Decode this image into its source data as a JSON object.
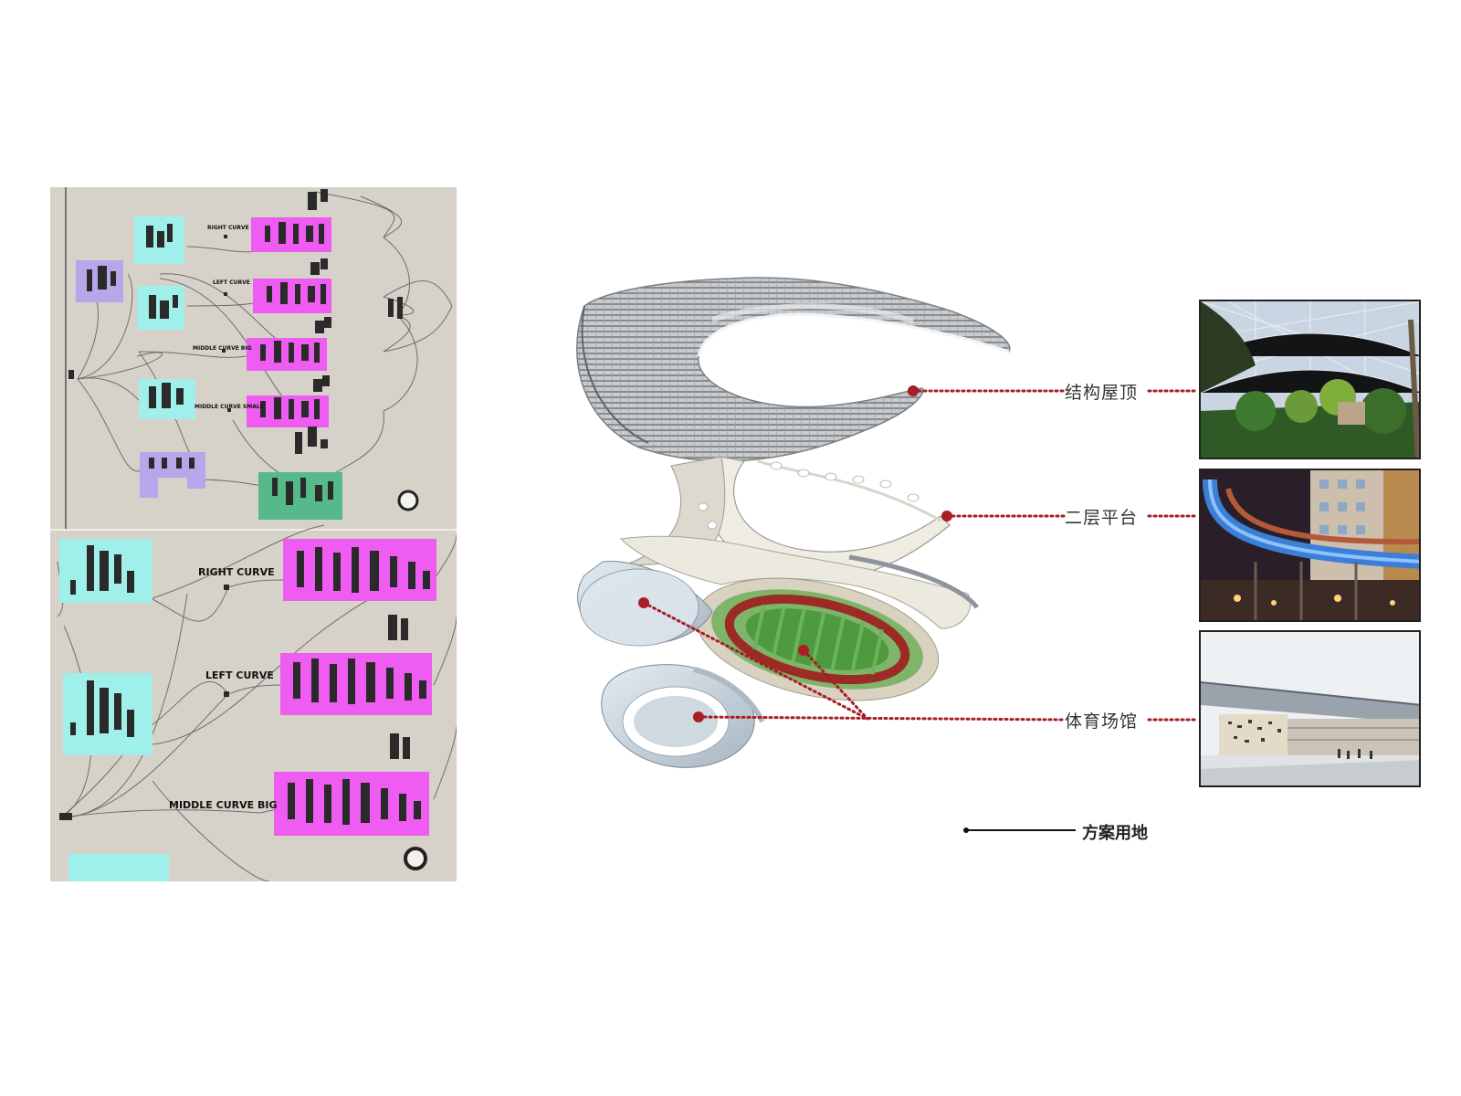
{
  "grasshopper": {
    "upper": {
      "labels": [
        "RIGHT CURVE",
        "LEFT CURVE",
        "MIDDLE CURVE BIG",
        "MIDDLE CURVE SMALL"
      ]
    },
    "lower": {
      "labels": [
        "RIGHT CURVE",
        "LEFT CURVE",
        "MIDDLE CURVE BIG"
      ]
    },
    "colors": {
      "canvas": "#d6d2c9",
      "group_cyan": "#9ff0ea",
      "group_magenta": "#ef5cf2",
      "group_purple": "#b7a6ea",
      "group_green": "#55b98a"
    }
  },
  "layers": [
    {
      "id": "roof",
      "label": "结构屋顶",
      "photo": "glass-dome-garden-photo"
    },
    {
      "id": "platform",
      "label": "二层平台",
      "photo": "elevated-walkway-night-photo"
    },
    {
      "id": "venue",
      "label": "体育场馆",
      "photo": "stadium-exterior-photo"
    }
  ],
  "legend": {
    "site_label": "方案用地"
  },
  "colors": {
    "leader_dot": "#a81d26",
    "roof_mesh": "#8e9194",
    "field_green": "#4e9a3e",
    "track_red": "#9b2b24"
  }
}
